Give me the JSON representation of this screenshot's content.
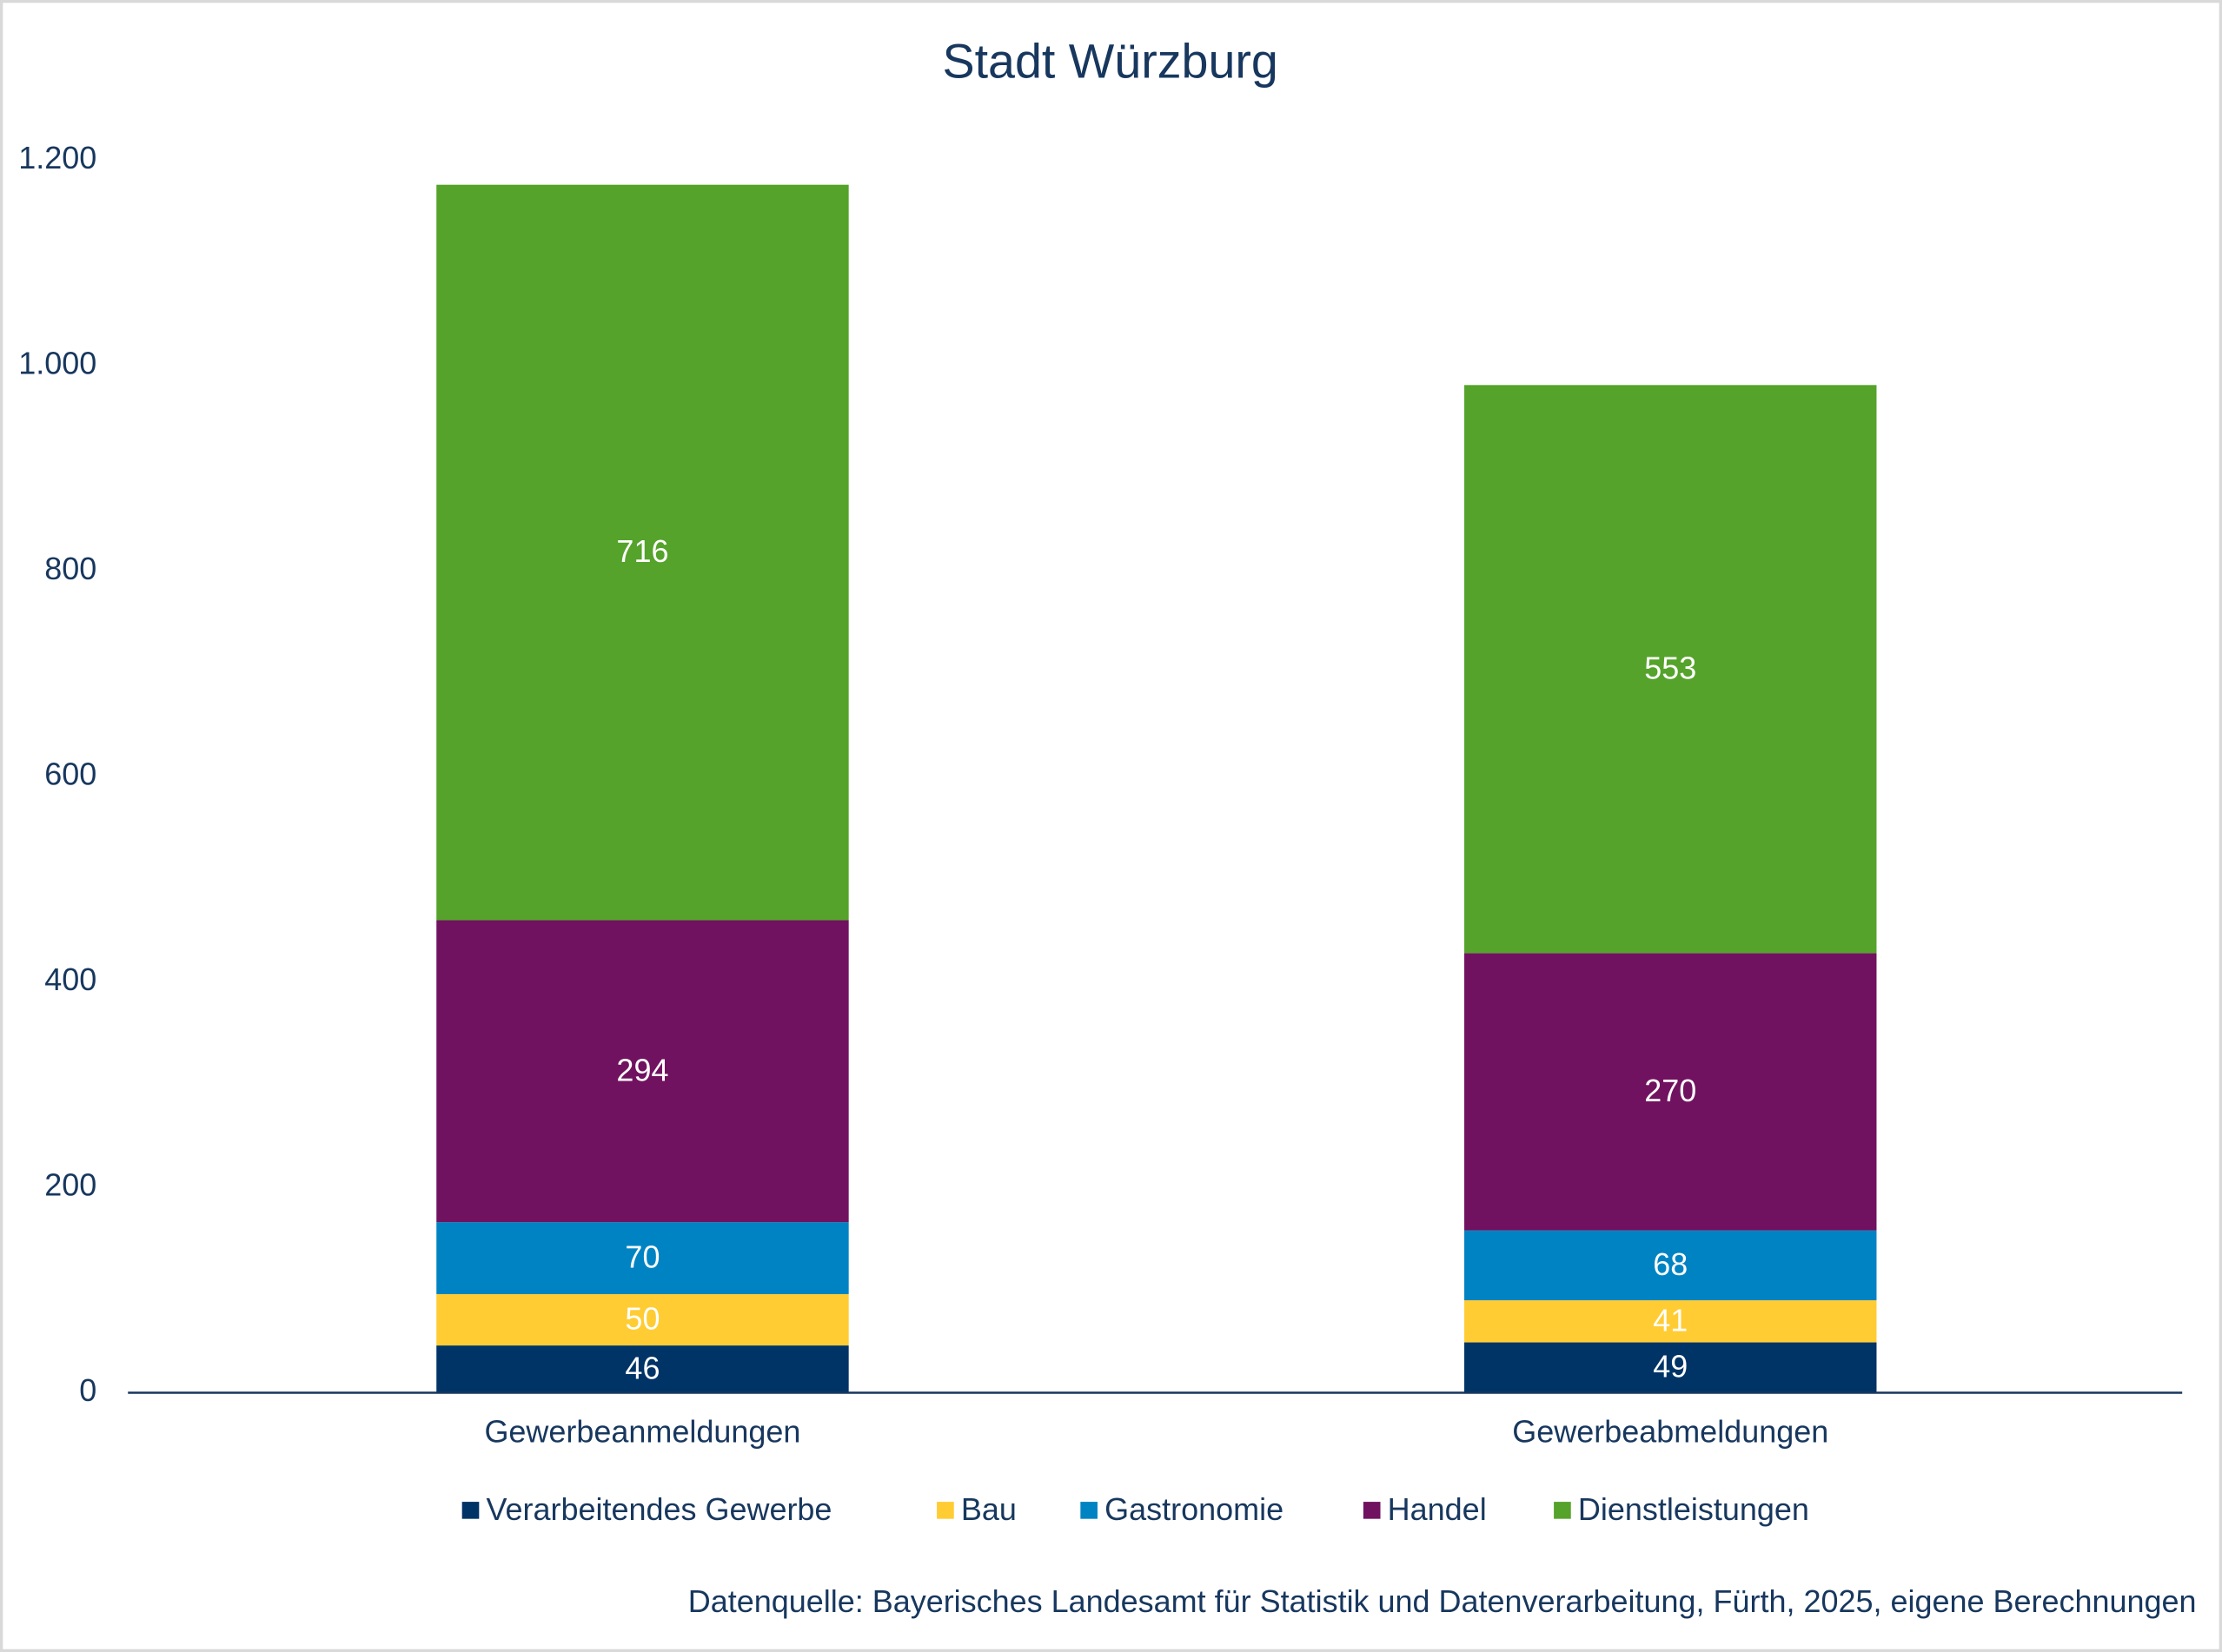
{
  "chart_data": {
    "type": "stacked_bar",
    "title": "Stadt Würzburg",
    "categories": [
      "Gewerbeanmeldungen",
      "Gewerbeabmeldungen"
    ],
    "series": [
      {
        "name": "Verarbeitendes Gewerbe",
        "color": "#003366",
        "values": [
          46,
          49
        ]
      },
      {
        "name": "Bau",
        "color": "#ffcc33",
        "values": [
          50,
          41
        ]
      },
      {
        "name": "Gastronomie",
        "color": "#0083c3",
        "values": [
          70,
          68
        ]
      },
      {
        "name": "Handel",
        "color": "#70125f",
        "values": [
          294,
          270
        ]
      },
      {
        "name": "Dienstleistungen",
        "color": "#55a32a",
        "values": [
          716,
          553
        ]
      }
    ],
    "ylim": [
      0,
      1200
    ],
    "yticks": [
      0,
      200,
      400,
      600,
      800,
      {
        "value": 1000,
        "label": "1.000"
      },
      {
        "value": 1200,
        "label": "1.200"
      }
    ],
    "grid": false,
    "legend": "bottom",
    "source": "Datenquelle: Bayerisches Landesamt für Statistik und Datenverarbeitung, Fürth, 2025, eigene Berechnungen"
  }
}
